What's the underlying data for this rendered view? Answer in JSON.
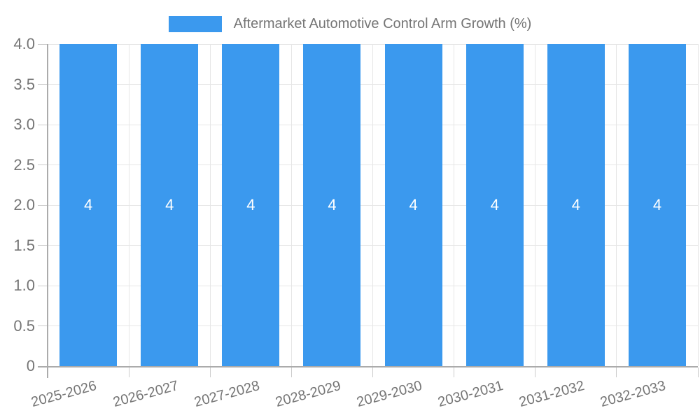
{
  "legend": {
    "label": "Aftermarket Automotive Control Arm Growth (%)"
  },
  "chart_data": {
    "type": "bar",
    "title": "Aftermarket Automotive Control Arm Growth (%)",
    "categories": [
      "2025-2026",
      "2026-2027",
      "2027-2028",
      "2028-2029",
      "2029-2030",
      "2030-2031",
      "2031-2032",
      "2032-2033"
    ],
    "values": [
      4,
      4,
      4,
      4,
      4,
      4,
      4,
      4
    ],
    "value_labels": [
      "4",
      "4",
      "4",
      "4",
      "4",
      "4",
      "4",
      "4"
    ],
    "xlabel": "",
    "ylabel": "",
    "ylim": [
      0,
      4
    ],
    "y_ticks": [
      {
        "v": 0,
        "label": "0"
      },
      {
        "v": 0.5,
        "label": "0.5"
      },
      {
        "v": 1,
        "label": "1.0"
      },
      {
        "v": 1.5,
        "label": "1.5"
      },
      {
        "v": 2,
        "label": "2.0"
      },
      {
        "v": 2.5,
        "label": "2.5"
      },
      {
        "v": 3,
        "label": "3.0"
      },
      {
        "v": 3.5,
        "label": "3.5"
      },
      {
        "v": 4,
        "label": "4.0"
      }
    ],
    "grid": true,
    "legend_position": "top-center",
    "colors": {
      "bar": "#3b99ee",
      "grid": "#e6e6e6",
      "axis": "#ababab",
      "tick_mark": "#cccccc",
      "text": "#757575",
      "bar_label": "#ffffff",
      "background": "#ffffff"
    }
  }
}
